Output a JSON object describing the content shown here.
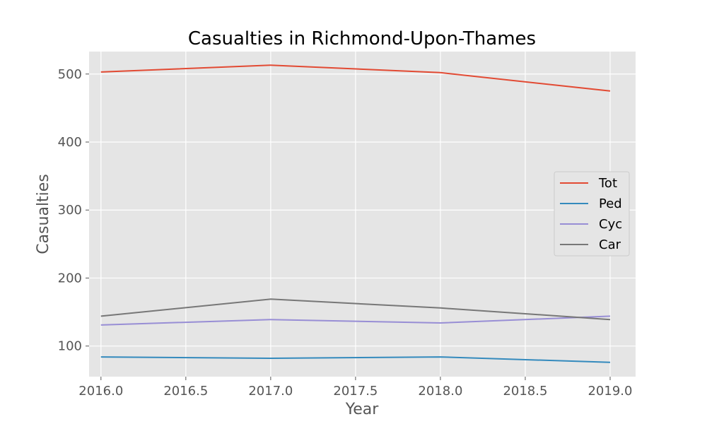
{
  "chart_data": {
    "type": "line",
    "title": "Casualties in Richmond-Upon-Thames",
    "xlabel": "Year",
    "ylabel": "Casualties",
    "x": [
      2016,
      2017,
      2018,
      2019
    ],
    "xlim": [
      2015.93,
      2019.15
    ],
    "ylim": [
      55,
      533
    ],
    "xticks": [
      2016.0,
      2016.5,
      2017.0,
      2017.5,
      2018.0,
      2018.5,
      2019.0
    ],
    "xtick_labels": [
      "2016.0",
      "2016.5",
      "2017.0",
      "2017.5",
      "2018.0",
      "2018.5",
      "2019.0"
    ],
    "yticks": [
      100,
      200,
      300,
      400,
      500
    ],
    "ytick_labels": [
      "100",
      "200",
      "300",
      "400",
      "500"
    ],
    "grid": true,
    "legend_position": "center-right",
    "series": [
      {
        "name": "Tot",
        "color": "#E24A33",
        "values": [
          503,
          513,
          502,
          475
        ]
      },
      {
        "name": "Ped",
        "color": "#348ABD",
        "values": [
          84,
          82,
          84,
          76
        ]
      },
      {
        "name": "Cyc",
        "color": "#988ED5",
        "values": [
          131,
          139,
          134,
          144
        ]
      },
      {
        "name": "Car",
        "color": "#777777",
        "values": [
          144,
          169,
          156,
          139
        ]
      }
    ]
  }
}
